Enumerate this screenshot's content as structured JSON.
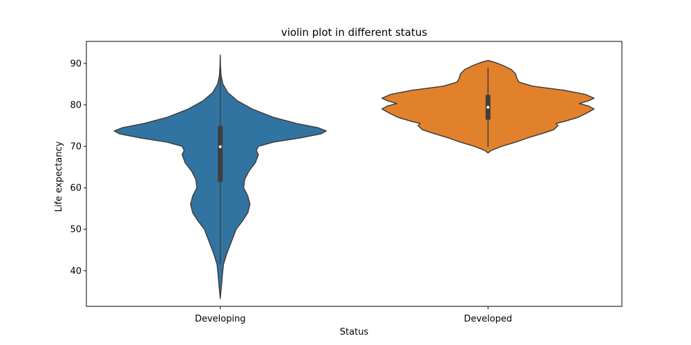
{
  "chart_data": {
    "type": "violin",
    "title": "violin plot in different status",
    "xlabel": "Status",
    "ylabel": "Life expectancy",
    "ylim": [
      31.4,
      95.3
    ],
    "yticks": [
      40,
      50,
      60,
      70,
      80,
      90
    ],
    "grid": false,
    "legend": "none",
    "categories": [
      "Developing",
      "Developed"
    ],
    "series": [
      {
        "name": "Developing",
        "color": "#3274a1",
        "min": 33.3,
        "max": 92.0,
        "q1": 61.5,
        "median": 69.9,
        "q3": 74.8,
        "whisker_low": 41.5,
        "whisker_high": 89.0,
        "density": [
          [
            33.3,
            0.0
          ],
          [
            36.0,
            0.01
          ],
          [
            39.0,
            0.02
          ],
          [
            41.5,
            0.03
          ],
          [
            44.0,
            0.06
          ],
          [
            46.0,
            0.09
          ],
          [
            48.0,
            0.12
          ],
          [
            50.0,
            0.15
          ],
          [
            52.0,
            0.21
          ],
          [
            54.0,
            0.26
          ],
          [
            56.0,
            0.28
          ],
          [
            58.0,
            0.26
          ],
          [
            60.0,
            0.22
          ],
          [
            62.0,
            0.23
          ],
          [
            64.0,
            0.27
          ],
          [
            66.0,
            0.33
          ],
          [
            68.0,
            0.36
          ],
          [
            69.0,
            0.34
          ],
          [
            70.0,
            0.36
          ],
          [
            71.0,
            0.5
          ],
          [
            72.0,
            0.75
          ],
          [
            73.0,
            0.95
          ],
          [
            73.7,
            1.0
          ],
          [
            74.5,
            0.92
          ],
          [
            75.5,
            0.72
          ],
          [
            77.0,
            0.5
          ],
          [
            79.0,
            0.3
          ],
          [
            81.0,
            0.16
          ],
          [
            83.0,
            0.07
          ],
          [
            85.0,
            0.025
          ],
          [
            87.0,
            0.008
          ],
          [
            89.5,
            0.002
          ],
          [
            92.0,
            0.0
          ]
        ]
      },
      {
        "name": "Developed",
        "color": "#e1812c",
        "min": 68.4,
        "max": 90.7,
        "q1": 76.5,
        "median": 79.4,
        "q3": 82.3,
        "whisker_low": 69.9,
        "whisker_high": 89.0,
        "density": [
          [
            68.4,
            0.0
          ],
          [
            69.0,
            0.03
          ],
          [
            70.0,
            0.13
          ],
          [
            71.0,
            0.26
          ],
          [
            72.0,
            0.37
          ],
          [
            73.0,
            0.5
          ],
          [
            74.0,
            0.62
          ],
          [
            75.0,
            0.66
          ],
          [
            75.5,
            0.64
          ],
          [
            76.0,
            0.72
          ],
          [
            77.0,
            0.85
          ],
          [
            78.0,
            0.93
          ],
          [
            79.0,
            1.0
          ],
          [
            79.7,
            0.95
          ],
          [
            80.3,
            0.86
          ],
          [
            81.0,
            0.95
          ],
          [
            81.6,
            1.0
          ],
          [
            82.5,
            0.92
          ],
          [
            83.5,
            0.72
          ],
          [
            84.5,
            0.42
          ],
          [
            85.5,
            0.29
          ],
          [
            86.5,
            0.27
          ],
          [
            87.5,
            0.26
          ],
          [
            88.5,
            0.22
          ],
          [
            89.5,
            0.14
          ],
          [
            90.2,
            0.07
          ],
          [
            90.7,
            0.0
          ]
        ]
      }
    ]
  }
}
